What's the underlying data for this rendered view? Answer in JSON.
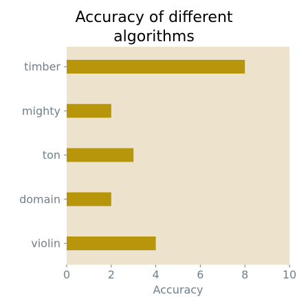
{
  "chart_data": {
    "type": "bar",
    "orientation": "horizontal",
    "title": "Accuracy of different algorithms",
    "title_lines": [
      "Accuracy of different",
      "algorithms"
    ],
    "categories": [
      "timber",
      "mighty",
      "ton",
      "domain",
      "violin"
    ],
    "values": [
      8,
      2,
      3,
      2,
      4
    ],
    "xlabel": "Accuracy",
    "ylabel": "",
    "xlim": [
      0,
      10
    ],
    "xticks": [
      0,
      2,
      4,
      6,
      8,
      10
    ],
    "grid": false,
    "legend": "none",
    "colors": {
      "bar": "#b8960b",
      "plot_background": "#ede3cc",
      "tick_text": "#6e7f8c",
      "title": "#000000"
    }
  }
}
